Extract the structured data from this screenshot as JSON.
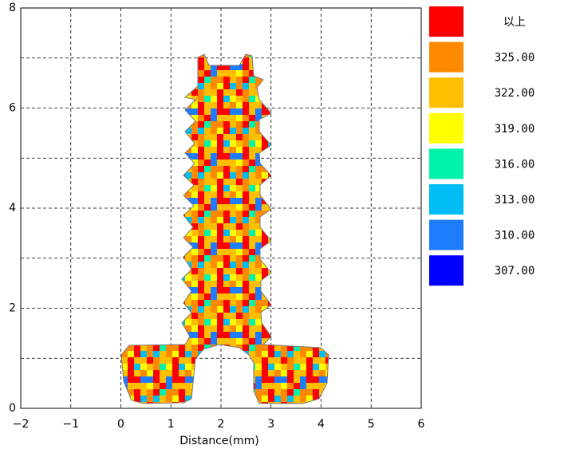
{
  "chart_data": {
    "type": "heatmap",
    "xlabel": "Distance(mm)",
    "xlim": [
      -2,
      6
    ],
    "xticks": [
      {
        "value": -2,
        "label": "−2"
      },
      {
        "value": -1,
        "label": "−1"
      },
      0,
      1,
      2,
      3,
      4,
      5,
      6
    ],
    "ylim": [
      0,
      8
    ],
    "yticks": [
      0,
      2,
      4,
      6,
      8
    ],
    "yminor": [
      1,
      3,
      5,
      7
    ],
    "grid": true,
    "legend": {
      "labels": [
        "以上",
        "325.00",
        "322.00",
        "319.00",
        "316.00",
        "313.00",
        "310.00",
        "307.00"
      ],
      "colors": [
        "#ff0000",
        "#ff8a00",
        "#ffbe00",
        "#ffff00",
        "#00f5aa",
        "#00bef5",
        "#1e7cff",
        "#0000ff"
      ]
    }
  }
}
